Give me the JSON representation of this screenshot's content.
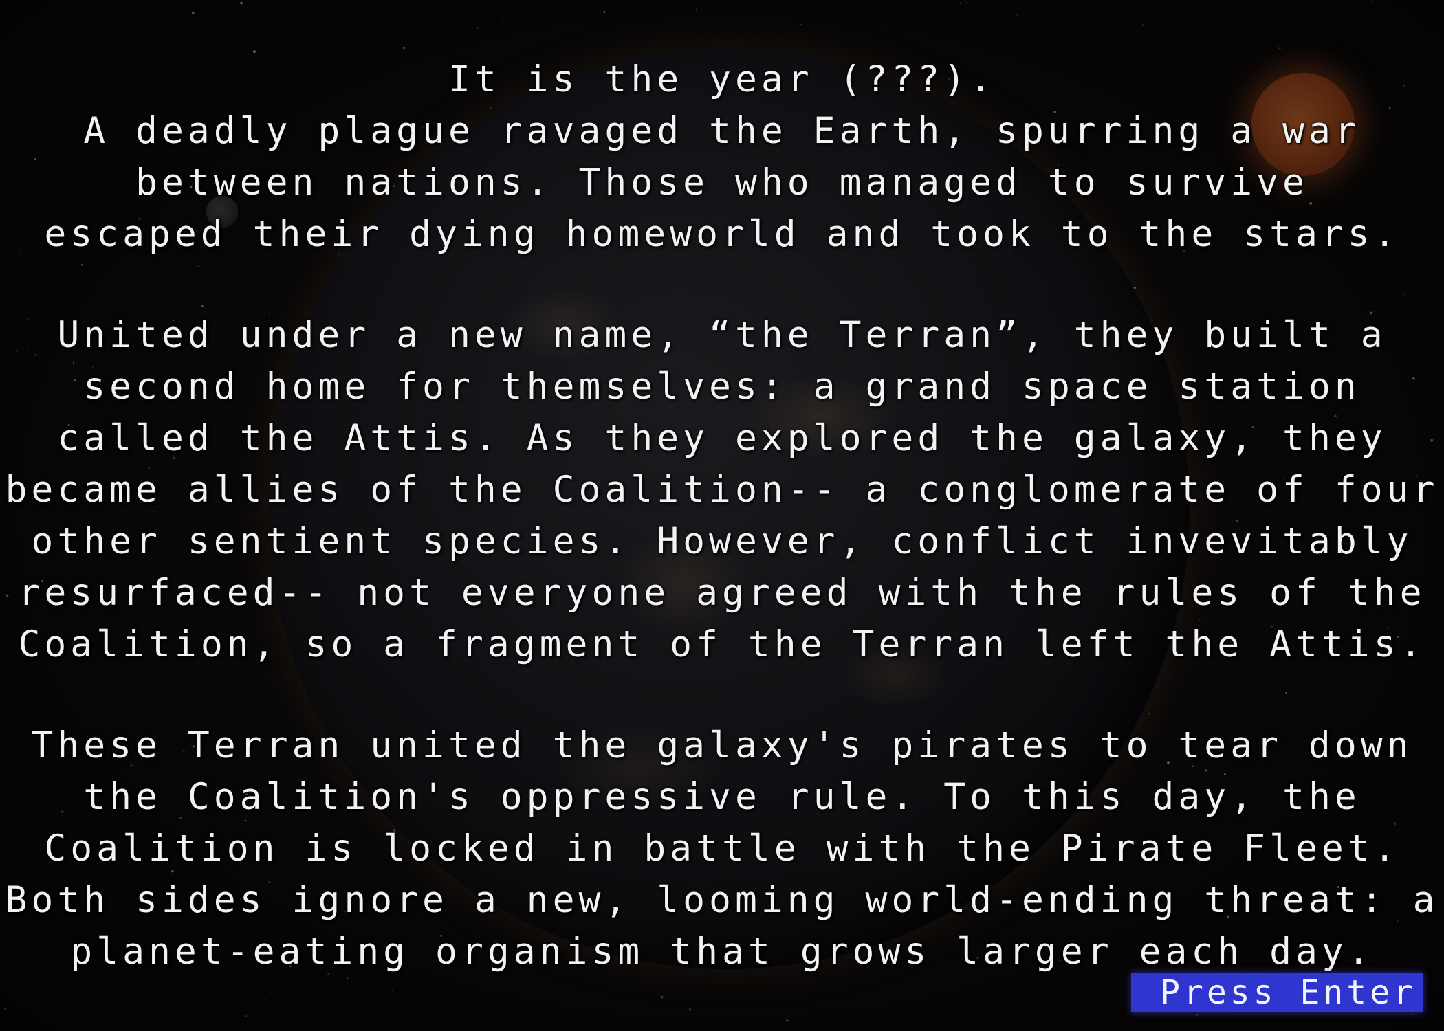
{
  "story": {
    "paragraphs": [
      {
        "lines": [
          "It is the year (???).",
          "A deadly plague ravaged the Earth, spurring a war",
          "between nations. Those who managed to survive",
          "escaped their dying homeworld and took to the stars."
        ]
      },
      {
        "lines": [
          "United under a new name, “the Terran”, they built a",
          "second home for themselves: a grand space station",
          "called the Attis. As they explored the galaxy, they",
          "became allies of the Coalition-- a conglomerate of four",
          "other sentient species. However, conflict invevitably",
          "resurfaced-- not everyone agreed with the rules of the",
          "Coalition, so a fragment of the Terran left the Attis."
        ]
      },
      {
        "lines": [
          "These Terran united the galaxy's pirates to tear down",
          "the Coalition's oppressive rule. To this day, the",
          "Coalition is locked in battle with the Pirate Fleet.",
          "Both sides ignore a new, looming world-ending threat: a",
          "planet-eating organism that grows larger each day."
        ]
      }
    ]
  },
  "prompt": {
    "label": "Press Enter",
    "accent_color": "#2f36cf"
  },
  "background": {
    "scene": "space with planet and distant sun",
    "icons": [
      "planet",
      "sun",
      "moon",
      "stars"
    ]
  }
}
